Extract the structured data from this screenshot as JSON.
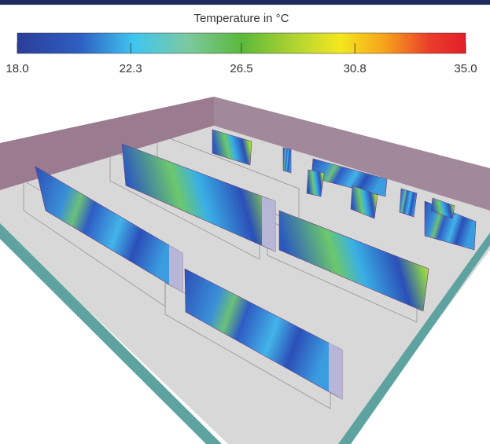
{
  "colorbar": {
    "title": "Temperature in °C",
    "ticks": [
      {
        "value": 18,
        "label": "18.0"
      },
      {
        "value": 22.3,
        "label": "22.3"
      },
      {
        "value": 26.5,
        "label": "26.5"
      },
      {
        "value": 30.8,
        "label": "30.8"
      },
      {
        "value": 35,
        "label": "35.0"
      }
    ]
  }
}
